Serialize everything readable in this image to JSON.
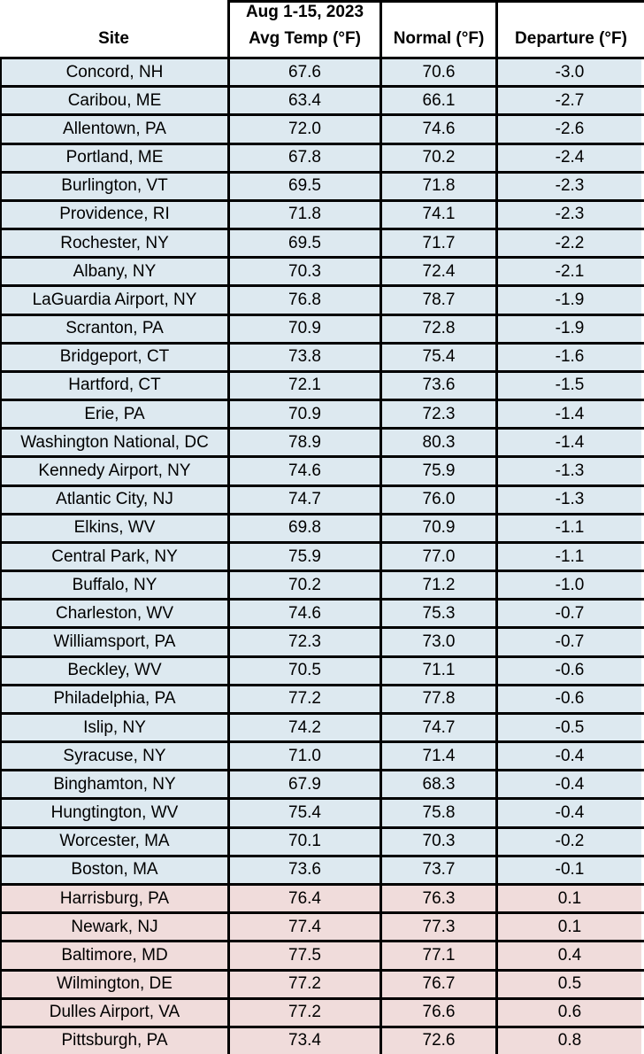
{
  "colors": {
    "below_normal_bg": "#dde9f0",
    "above_normal_bg": "#f0dcdb",
    "border": "#000000",
    "header_bg": "#ffffff",
    "text": "#000000"
  },
  "table": {
    "header": {
      "site": "Site",
      "avg_line1": "Aug 1-15, 2023",
      "avg_line2": "Avg Temp (°F)",
      "normal": "Normal (°F)",
      "departure": "Departure (°F)"
    },
    "rows": [
      {
        "site": "Concord, NH",
        "avg": "67.6",
        "normal": "70.6",
        "departure": "-3.0"
      },
      {
        "site": "Caribou, ME",
        "avg": "63.4",
        "normal": "66.1",
        "departure": "-2.7"
      },
      {
        "site": "Allentown, PA",
        "avg": "72.0",
        "normal": "74.6",
        "departure": "-2.6"
      },
      {
        "site": "Portland, ME",
        "avg": "67.8",
        "normal": "70.2",
        "departure": "-2.4"
      },
      {
        "site": "Burlington, VT",
        "avg": "69.5",
        "normal": "71.8",
        "departure": "-2.3"
      },
      {
        "site": "Providence, RI",
        "avg": "71.8",
        "normal": "74.1",
        "departure": "-2.3"
      },
      {
        "site": "Rochester, NY",
        "avg": "69.5",
        "normal": "71.7",
        "departure": "-2.2"
      },
      {
        "site": "Albany, NY",
        "avg": "70.3",
        "normal": "72.4",
        "departure": "-2.1"
      },
      {
        "site": "LaGuardia Airport, NY",
        "avg": "76.8",
        "normal": "78.7",
        "departure": "-1.9"
      },
      {
        "site": "Scranton, PA",
        "avg": "70.9",
        "normal": "72.8",
        "departure": "-1.9"
      },
      {
        "site": "Bridgeport, CT",
        "avg": "73.8",
        "normal": "75.4",
        "departure": "-1.6"
      },
      {
        "site": "Hartford, CT",
        "avg": "72.1",
        "normal": "73.6",
        "departure": "-1.5"
      },
      {
        "site": "Erie, PA",
        "avg": "70.9",
        "normal": "72.3",
        "departure": "-1.4"
      },
      {
        "site": "Washington National, DC",
        "avg": "78.9",
        "normal": "80.3",
        "departure": "-1.4"
      },
      {
        "site": "Kennedy Airport, NY",
        "avg": "74.6",
        "normal": "75.9",
        "departure": "-1.3"
      },
      {
        "site": "Atlantic City, NJ",
        "avg": "74.7",
        "normal": "76.0",
        "departure": "-1.3"
      },
      {
        "site": "Elkins, WV",
        "avg": "69.8",
        "normal": "70.9",
        "departure": "-1.1"
      },
      {
        "site": "Central Park, NY",
        "avg": "75.9",
        "normal": "77.0",
        "departure": "-1.1"
      },
      {
        "site": "Buffalo, NY",
        "avg": "70.2",
        "normal": "71.2",
        "departure": "-1.0"
      },
      {
        "site": "Charleston, WV",
        "avg": "74.6",
        "normal": "75.3",
        "departure": "-0.7"
      },
      {
        "site": "Williamsport, PA",
        "avg": "72.3",
        "normal": "73.0",
        "departure": "-0.7"
      },
      {
        "site": "Beckley, WV",
        "avg": "70.5",
        "normal": "71.1",
        "departure": "-0.6"
      },
      {
        "site": "Philadelphia, PA",
        "avg": "77.2",
        "normal": "77.8",
        "departure": "-0.6"
      },
      {
        "site": "Islip, NY",
        "avg": "74.2",
        "normal": "74.7",
        "departure": "-0.5"
      },
      {
        "site": "Syracuse, NY",
        "avg": "71.0",
        "normal": "71.4",
        "departure": "-0.4"
      },
      {
        "site": "Binghamton, NY",
        "avg": "67.9",
        "normal": "68.3",
        "departure": "-0.4"
      },
      {
        "site": "Hungtington, WV",
        "avg": "75.4",
        "normal": "75.8",
        "departure": "-0.4"
      },
      {
        "site": "Worcester, MA",
        "avg": "70.1",
        "normal": "70.3",
        "departure": "-0.2"
      },
      {
        "site": "Boston, MA",
        "avg": "73.6",
        "normal": "73.7",
        "departure": "-0.1"
      },
      {
        "site": "Harrisburg, PA",
        "avg": "76.4",
        "normal": "76.3",
        "departure": "0.1"
      },
      {
        "site": "Newark, NJ",
        "avg": "77.4",
        "normal": "77.3",
        "departure": "0.1"
      },
      {
        "site": "Baltimore, MD",
        "avg": "77.5",
        "normal": "77.1",
        "departure": "0.4"
      },
      {
        "site": "Wilmington, DE",
        "avg": "77.2",
        "normal": "76.7",
        "departure": "0.5"
      },
      {
        "site": "Dulles Airport, VA",
        "avg": "77.2",
        "normal": "76.6",
        "departure": "0.6"
      },
      {
        "site": "Pittsburgh, PA",
        "avg": "73.4",
        "normal": "72.6",
        "departure": "0.8"
      }
    ]
  }
}
